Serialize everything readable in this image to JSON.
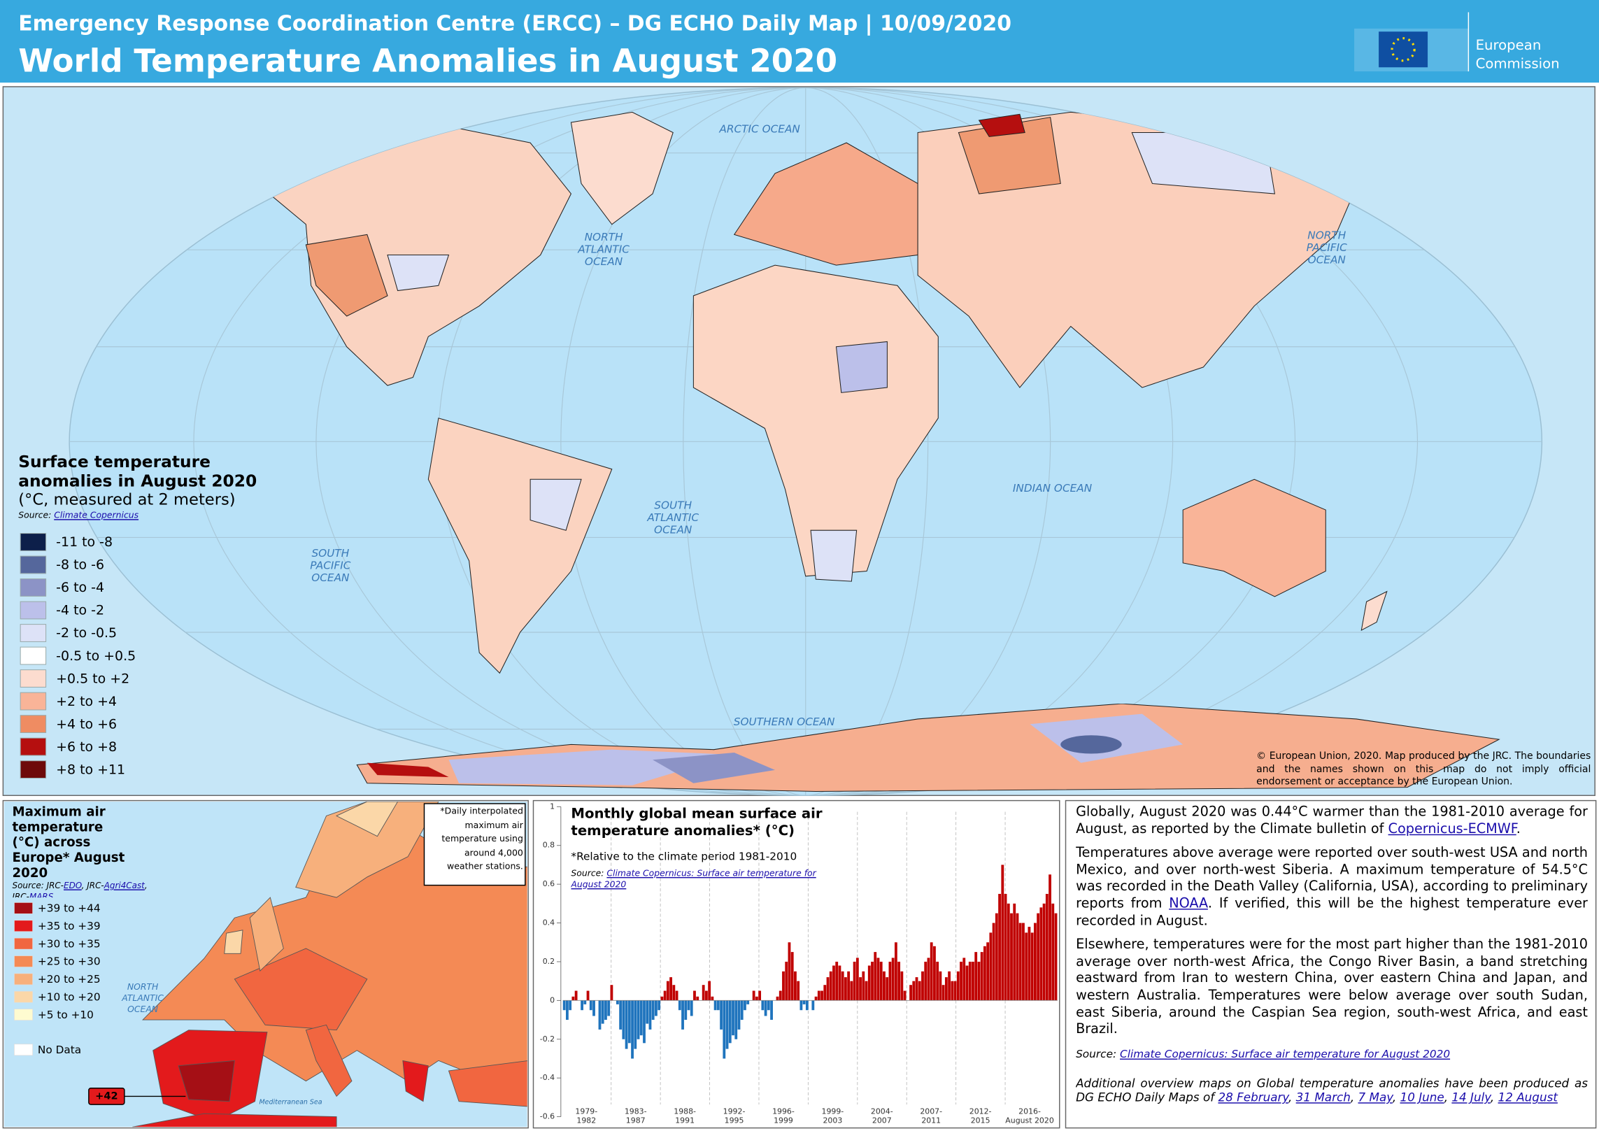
{
  "header": {
    "line1": "Emergency Response Coordination Centre (ERCC) – DG ECHO Daily Map | 10/09/2020",
    "title": "World Temperature Anomalies in August 2020",
    "brand": [
      "European",
      "Commission"
    ]
  },
  "map": {
    "oceans": [
      [
        "ARCTIC OCEAN"
      ],
      [
        "NORTH",
        "ATLANTIC",
        "OCEAN"
      ],
      [
        "NORTH",
        "PACIFIC",
        "OCEAN"
      ],
      [
        "SOUTH",
        "ATLANTIC",
        "OCEAN"
      ],
      [
        "SOUTH",
        "PACIFIC",
        "OCEAN"
      ],
      [
        "INDIAN OCEAN"
      ],
      [
        "SOUTHERN OCEAN"
      ]
    ],
    "legend_title": "Surface temperature anomalies in August 2020",
    "legend_subtitle": "(°C, measured at 2 meters)",
    "source": [
      {
        "text": "Source:  "
      },
      {
        "link": "Climate Copernicus"
      }
    ],
    "legend": [
      {
        "label": "-11 to -8",
        "color": "#0d1f4a"
      },
      {
        "label": "-8 to -6",
        "color": "#55679c"
      },
      {
        "label": "-6 to -4",
        "color": "#8c93c6"
      },
      {
        "label": "-4 to -2",
        "color": "#bcc0ea"
      },
      {
        "label": "-2 to -0.5",
        "color": "#dde2f7"
      },
      {
        "label": "-0.5 to +0.5",
        "color": "#ffffff"
      },
      {
        "label": "+0.5  to +2",
        "color": "#fcdccf"
      },
      {
        "label": "+2  to +4",
        "color": "#f9b498"
      },
      {
        "label": "+4  to +6",
        "color": "#ef8c62"
      },
      {
        "label": "+6  to +8",
        "color": "#b50f0f"
      },
      {
        "label": "+8  to +11",
        "color": "#6e0a0a"
      }
    ],
    "copyright": "© European Union, 2020. Map produced by the JRC. The boundaries and the names shown on this map do not imply official endorsement or acceptance by the European Union."
  },
  "europe_map": {
    "title": "Maximum air temperature (°C) across Europe* August 2020",
    "source": [
      {
        "text": "Source:  JRC-"
      },
      {
        "link": "EDO"
      },
      {
        "text": ", JRC-"
      },
      {
        "link": "Agri4Cast"
      },
      {
        "text": ", JRC-"
      },
      {
        "link": "MARS"
      }
    ],
    "note": "*Daily interpolated maximum air temperature using around 4,000 weather stations.",
    "legend": [
      {
        "label": "+39 to +44",
        "color": "#a50f15"
      },
      {
        "label": "+35 to +39",
        "color": "#e31a1c"
      },
      {
        "label": "+30 to +35",
        "color": "#f16640"
      },
      {
        "label": "+25 to +30",
        "color": "#f48a55"
      },
      {
        "label": "+20 to +25",
        "color": "#f7b07c"
      },
      {
        "label": "+10 to +20",
        "color": "#fbd7a8"
      },
      {
        "label": "+5 to +10",
        "color": "#fefbd0"
      },
      {
        "label": "No Data",
        "color": "#ffffff"
      }
    ],
    "ocean": [
      "NORTH",
      "ATLANTIC",
      "OCEAN"
    ],
    "sea": "Mediterranean  Sea",
    "max_label": "+42"
  },
  "chart_data": {
    "type": "bar",
    "title": "Monthly global mean surface air temperature anomalies*  (°C)",
    "note": "*Relative to the climate period 1981-2010",
    "source": [
      {
        "text": "Source:  "
      },
      {
        "link": "Climate Copernicus: Surface air temperature for August 2020"
      }
    ],
    "positive_color": "#c00000",
    "negative_color": "#1f74bd",
    "x_labels": [
      [
        "1979-",
        "1982"
      ],
      [
        "1983-",
        "1987"
      ],
      [
        "1988-",
        "1991"
      ],
      [
        "1992-",
        "1995"
      ],
      [
        "1996-",
        "1999"
      ],
      [
        "1999-",
        "2003"
      ],
      [
        "2004-",
        "2007"
      ],
      [
        "2007-",
        "2011"
      ],
      [
        "2012-",
        "2015"
      ],
      [
        "2016-",
        "August 2020"
      ]
    ],
    "ylim": [
      -0.6,
      1
    ],
    "yticks": [
      -0.6,
      -0.4,
      -0.2,
      0,
      0.2,
      0.4,
      0.6,
      0.8,
      1
    ],
    "values": [
      -0.05,
      -0.1,
      -0.05,
      0.02,
      0.05,
      0.0,
      -0.05,
      -0.02,
      0.05,
      -0.05,
      -0.08,
      0.0,
      -0.15,
      -0.12,
      -0.1,
      -0.08,
      0.08,
      0.0,
      -0.02,
      -0.15,
      -0.2,
      -0.25,
      -0.22,
      -0.3,
      -0.25,
      -0.2,
      -0.18,
      -0.22,
      -0.12,
      -0.15,
      -0.1,
      -0.08,
      -0.05,
      0.02,
      0.05,
      0.1,
      0.12,
      0.08,
      0.05,
      -0.05,
      -0.15,
      -0.1,
      -0.05,
      -0.08,
      0.05,
      0.02,
      0.0,
      0.08,
      0.05,
      0.1,
      0.02,
      -0.05,
      -0.05,
      -0.15,
      -0.3,
      -0.25,
      -0.22,
      -0.18,
      -0.2,
      -0.15,
      -0.1,
      -0.05,
      -0.02,
      0.0,
      0.05,
      0.02,
      0.05,
      -0.05,
      -0.08,
      -0.05,
      -0.1,
      0.0,
      0.02,
      0.05,
      0.15,
      0.2,
      0.3,
      0.25,
      0.15,
      0.1,
      -0.05,
      -0.02,
      -0.05,
      0.0,
      -0.05,
      0.02,
      0.05,
      0.05,
      0.08,
      0.12,
      0.15,
      0.18,
      0.2,
      0.18,
      0.15,
      0.12,
      0.15,
      0.1,
      0.2,
      0.22,
      0.12,
      0.15,
      0.1,
      0.18,
      0.2,
      0.25,
      0.22,
      0.2,
      0.15,
      0.12,
      0.2,
      0.22,
      0.3,
      0.2,
      0.15,
      0.05,
      0.0,
      0.08,
      0.1,
      0.12,
      0.1,
      0.15,
      0.2,
      0.22,
      0.3,
      0.28,
      0.2,
      0.15,
      0.08,
      0.12,
      0.15,
      0.1,
      0.1,
      0.15,
      0.2,
      0.22,
      0.18,
      0.2,
      0.2,
      0.25,
      0.2,
      0.25,
      0.28,
      0.3,
      0.35,
      0.4,
      0.45,
      0.55,
      0.7,
      0.55,
      0.5,
      0.45,
      0.5,
      0.45,
      0.4,
      0.4,
      0.35,
      0.38,
      0.35,
      0.4,
      0.45,
      0.48,
      0.5,
      0.55,
      0.65,
      0.5,
      0.45
    ]
  },
  "text_panel": {
    "paragraphs": [
      [
        {
          "text": "Globally, August 2020 was 0.44°C warmer than the 1981-2010 average for August, as reported by the Climate bulletin of "
        },
        {
          "link": "Copernicus-ECMWF"
        },
        {
          "text": "."
        }
      ],
      [
        {
          "text": "Temperatures above average were reported over south-west USA and north Mexico, and over north-west Siberia. A maximum temperature of 54.5°C was recorded in the Death Valley (California, USA), according to preliminary reports from "
        },
        {
          "link": "NOAA"
        },
        {
          "text": ". If verified, this will be the highest temperature ever recorded in August."
        }
      ],
      [
        {
          "text": "Elsewhere, temperatures were for the most part higher than the 1981-2010 average over north-west Africa, the Congo River Basin, a band stretching eastward from Iran to western China, over eastern China and Japan, and western Australia. Temperatures were below average over south Sudan, east Siberia, around the Caspian Sea region, south-west Africa, and east Brazil."
        }
      ]
    ],
    "source": [
      {
        "text": "Source: "
      },
      {
        "link": "Climate Copernicus: Surface air temperature for August 2020"
      }
    ],
    "additional": [
      {
        "text": "Additional overview maps on Global temperature anomalies have been produced as DG ECHO Daily Maps of "
      },
      {
        "link": "28 February"
      },
      {
        "text": ", "
      },
      {
        "link": "31 March"
      },
      {
        "text": ", "
      },
      {
        "link": "7 May"
      },
      {
        "text": ", "
      },
      {
        "link": "10 June"
      },
      {
        "text": ", "
      },
      {
        "link": "14 July"
      },
      {
        "text": ", "
      },
      {
        "link": "12 August"
      }
    ]
  }
}
